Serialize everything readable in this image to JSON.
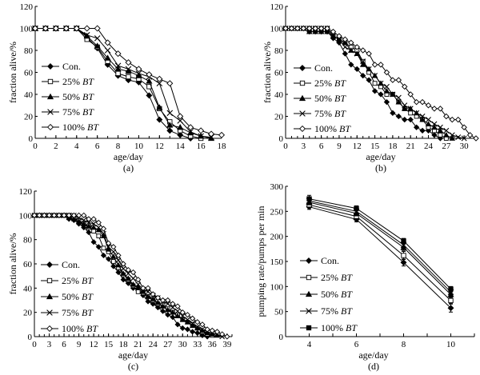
{
  "chart_data": [
    {
      "id": "a",
      "type": "line",
      "panel_label": "(a)",
      "xlabel": "age/day",
      "ylabel": "fraction alive/%",
      "xlim": [
        0,
        18
      ],
      "ylim": [
        0,
        120
      ],
      "xticks": [
        0,
        2,
        4,
        6,
        8,
        10,
        12,
        14,
        16,
        18
      ],
      "yticks": [
        0,
        20,
        40,
        60,
        80,
        100,
        120
      ],
      "legend_position": "center-left",
      "series": [
        {
          "name": "Con.",
          "marker": "diamond-filled",
          "x": [
            0,
            1,
            2,
            3,
            4,
            5,
            6,
            7,
            8,
            9,
            10,
            11,
            12,
            13,
            14,
            15
          ],
          "y": [
            100,
            100,
            100,
            100,
            100,
            92,
            82,
            67,
            57,
            53,
            51,
            39,
            17,
            7,
            3,
            0
          ]
        },
        {
          "name": "25% BT",
          "marker": "square-open",
          "x": [
            0,
            1,
            2,
            3,
            4,
            5,
            6,
            7,
            8,
            9,
            10,
            11,
            12,
            13,
            14,
            15,
            16
          ],
          "y": [
            100,
            100,
            100,
            100,
            100,
            90,
            83,
            70,
            59,
            56,
            54,
            47,
            27,
            15,
            7,
            2,
            0
          ]
        },
        {
          "name": "50% BT",
          "marker": "triangle-filled",
          "x": [
            0,
            1,
            2,
            3,
            4,
            5,
            6,
            7,
            8,
            9,
            10,
            11,
            12,
            13,
            14,
            15,
            16,
            17
          ],
          "y": [
            100,
            100,
            100,
            100,
            100,
            93,
            84,
            73,
            63,
            61,
            57,
            52,
            28,
            12,
            10,
            5,
            2,
            0
          ]
        },
        {
          "name": "75% BT",
          "marker": "x",
          "x": [
            0,
            1,
            2,
            3,
            4,
            5,
            6,
            7,
            8,
            9,
            10,
            11,
            12,
            13,
            14,
            15,
            16,
            17
          ],
          "y": [
            100,
            100,
            100,
            100,
            100,
            94,
            91,
            80,
            66,
            63,
            59,
            56,
            50,
            23,
            16,
            6,
            2,
            1
          ]
        },
        {
          "name": "100% BT",
          "marker": "diamond-open",
          "x": [
            0,
            1,
            2,
            3,
            4,
            5,
            6,
            7,
            8,
            9,
            10,
            11,
            12,
            13,
            14,
            15,
            16,
            17,
            18
          ],
          "y": [
            100,
            100,
            100,
            100,
            100,
            100,
            100,
            87,
            77,
            69,
            63,
            58,
            54,
            50,
            20,
            10,
            7,
            4,
            3
          ]
        }
      ]
    },
    {
      "id": "b",
      "type": "line",
      "panel_label": "(b)",
      "xlabel": "age/day",
      "ylabel": "fraction alive/%",
      "xlim": [
        0,
        32
      ],
      "ylim": [
        0,
        120
      ],
      "xticks": [
        0,
        3,
        6,
        9,
        12,
        15,
        18,
        21,
        24,
        27,
        30
      ],
      "yticks": [
        0,
        20,
        40,
        60,
        80,
        100,
        120
      ],
      "legend_position": "center-left",
      "series": [
        {
          "name": "Con.",
          "marker": "diamond-filled",
          "x": [
            0,
            1,
            2,
            3,
            4,
            5,
            6,
            7,
            8,
            9,
            10,
            11,
            12,
            13,
            14,
            15,
            16,
            17,
            18,
            19,
            20,
            21,
            22,
            23,
            24,
            25,
            26
          ],
          "y": [
            100,
            100,
            100,
            100,
            97,
            97,
            97,
            97,
            91,
            87,
            77,
            67,
            63,
            57,
            53,
            43,
            40,
            33,
            23,
            20,
            17,
            17,
            10,
            7,
            7,
            3,
            0
          ]
        },
        {
          "name": "25% BT",
          "marker": "square-open",
          "x": [
            0,
            1,
            2,
            3,
            4,
            5,
            6,
            7,
            8,
            9,
            10,
            11,
            12,
            13,
            14,
            15,
            16,
            17,
            18,
            19,
            20,
            21,
            22,
            23,
            24,
            25,
            26,
            27
          ],
          "y": [
            100,
            100,
            100,
            100,
            100,
            100,
            100,
            100,
            93,
            90,
            87,
            83,
            80,
            70,
            60,
            50,
            47,
            40,
            40,
            33,
            27,
            23,
            20,
            17,
            10,
            7,
            3,
            0
          ]
        },
        {
          "name": "50% BT",
          "marker": "triangle-filled",
          "x": [
            0,
            1,
            2,
            3,
            4,
            5,
            6,
            7,
            8,
            9,
            10,
            11,
            12,
            13,
            14,
            15,
            16,
            17,
            18,
            19,
            20,
            21,
            22,
            23,
            24,
            25,
            26,
            27,
            28
          ],
          "y": [
            100,
            100,
            100,
            100,
            97,
            97,
            97,
            97,
            93,
            90,
            87,
            80,
            77,
            67,
            63,
            57,
            50,
            43,
            40,
            33,
            27,
            27,
            23,
            17,
            13,
            10,
            7,
            3,
            0
          ]
        },
        {
          "name": "75% BT",
          "marker": "x",
          "x": [
            0,
            1,
            2,
            3,
            4,
            5,
            6,
            7,
            8,
            9,
            10,
            11,
            12,
            13,
            14,
            15,
            16,
            17,
            18,
            19,
            20,
            21,
            22,
            23,
            24,
            25,
            26,
            27,
            28,
            29,
            30
          ],
          "y": [
            100,
            100,
            100,
            100,
            100,
            100,
            100,
            100,
            93,
            90,
            83,
            80,
            77,
            70,
            63,
            57,
            50,
            47,
            40,
            37,
            30,
            27,
            23,
            20,
            17,
            13,
            10,
            7,
            3,
            1,
            0
          ]
        },
        {
          "name": "100% BT",
          "marker": "diamond-open",
          "x": [
            0,
            1,
            2,
            3,
            4,
            5,
            6,
            7,
            8,
            9,
            10,
            11,
            12,
            13,
            14,
            15,
            16,
            17,
            18,
            19,
            20,
            21,
            22,
            23,
            24,
            25,
            26,
            27,
            28,
            29,
            30,
            31,
            32
          ],
          "y": [
            100,
            100,
            100,
            100,
            100,
            100,
            100,
            100,
            97,
            93,
            90,
            87,
            83,
            80,
            77,
            67,
            67,
            60,
            53,
            53,
            47,
            40,
            33,
            33,
            30,
            27,
            27,
            20,
            17,
            17,
            10,
            3,
            0
          ]
        }
      ]
    },
    {
      "id": "c",
      "type": "line",
      "panel_label": "(c)",
      "xlabel": "age/day",
      "ylabel": "fraction alive/%",
      "xlim": [
        0,
        40
      ],
      "ylim": [
        0,
        120
      ],
      "xticks": [
        0,
        3,
        6,
        9,
        12,
        15,
        18,
        21,
        24,
        27,
        30,
        33,
        36,
        39
      ],
      "yticks": [
        0,
        20,
        40,
        60,
        80,
        100,
        120
      ],
      "legend_position": "center-left",
      "series": [
        {
          "name": "Con.",
          "marker": "diamond-filled",
          "x": [
            0,
            1,
            2,
            3,
            4,
            5,
            6,
            7,
            8,
            9,
            10,
            11,
            12,
            13,
            14,
            15,
            16,
            17,
            18,
            19,
            20,
            21,
            22,
            23,
            24,
            25,
            26,
            27,
            28,
            29,
            30,
            31,
            32,
            33,
            34,
            35
          ],
          "y": [
            100,
            100,
            100,
            100,
            100,
            100,
            100,
            97,
            96,
            93,
            90,
            86,
            78,
            74,
            67,
            64,
            58,
            53,
            47,
            44,
            40,
            38,
            34,
            29,
            27,
            24,
            21,
            18,
            16,
            10,
            7,
            6,
            4,
            3,
            1,
            0
          ]
        },
        {
          "name": "25% BT",
          "marker": "square-open",
          "x": [
            0,
            1,
            2,
            3,
            4,
            5,
            6,
            7,
            8,
            9,
            10,
            11,
            12,
            13,
            14,
            15,
            16,
            17,
            18,
            19,
            20,
            21,
            22,
            23,
            24,
            25,
            26,
            27,
            28,
            29,
            30,
            31,
            32,
            33,
            34,
            35,
            36
          ],
          "y": [
            100,
            100,
            100,
            100,
            100,
            100,
            100,
            100,
            98,
            96,
            93,
            90,
            87,
            83,
            73,
            70,
            62,
            57,
            51,
            47,
            42,
            37,
            36,
            33,
            30,
            27,
            26,
            23,
            20,
            18,
            14,
            12,
            10,
            7,
            4,
            2,
            1
          ]
        },
        {
          "name": "50% BT",
          "marker": "triangle-filled",
          "x": [
            0,
            1,
            2,
            3,
            4,
            5,
            6,
            7,
            8,
            9,
            10,
            11,
            12,
            13,
            14,
            15,
            16,
            17,
            18,
            19,
            20,
            21,
            22,
            23,
            24,
            25,
            26,
            27,
            28,
            29,
            30,
            31,
            32,
            33,
            34,
            35,
            36,
            37
          ],
          "y": [
            100,
            100,
            100,
            100,
            100,
            100,
            100,
            98,
            97,
            95,
            93,
            91,
            90,
            88,
            83,
            72,
            66,
            59,
            52,
            48,
            43,
            41,
            37,
            33,
            31,
            28,
            25,
            22,
            20,
            17,
            14,
            12,
            9,
            7,
            5,
            3,
            2,
            1
          ]
        },
        {
          "name": "75% BT",
          "marker": "x",
          "x": [
            0,
            1,
            2,
            3,
            4,
            5,
            6,
            7,
            8,
            9,
            10,
            11,
            12,
            13,
            14,
            15,
            16,
            17,
            18,
            19,
            20,
            21,
            22,
            23,
            24,
            25,
            26,
            27,
            28,
            29,
            30,
            31,
            32,
            33,
            34,
            35,
            36,
            37,
            38
          ],
          "y": [
            100,
            100,
            100,
            100,
            100,
            100,
            100,
            100,
            100,
            98,
            96,
            94,
            93,
            90,
            85,
            74,
            70,
            63,
            56,
            52,
            48,
            43,
            39,
            37,
            34,
            32,
            29,
            27,
            24,
            21,
            17,
            14,
            11,
            8,
            6,
            4,
            3,
            2,
            0
          ]
        },
        {
          "name": "100% BT",
          "marker": "diamond-open",
          "x": [
            0,
            1,
            2,
            3,
            4,
            5,
            6,
            7,
            8,
            9,
            10,
            11,
            12,
            13,
            14,
            15,
            16,
            17,
            18,
            19,
            20,
            21,
            22,
            23,
            24,
            25,
            26,
            27,
            28,
            29,
            30,
            31,
            32,
            33,
            34,
            35,
            36,
            37,
            38,
            39
          ],
          "y": [
            100,
            100,
            100,
            100,
            100,
            100,
            100,
            100,
            100,
            100,
            100,
            97,
            97,
            94,
            89,
            77,
            74,
            67,
            60,
            55,
            53,
            47,
            40,
            40,
            35,
            32,
            30,
            30,
            27,
            25,
            20,
            18,
            15,
            12,
            10,
            6,
            5,
            4,
            2,
            0
          ]
        }
      ]
    },
    {
      "id": "d",
      "type": "line",
      "panel_label": "(d)",
      "xlabel": "age/day",
      "ylabel": "pumping rate/pumps per min",
      "xlim": [
        3,
        11
      ],
      "ylim": [
        0,
        300
      ],
      "xticks": [
        4,
        6,
        8,
        10
      ],
      "yticks": [
        0,
        50,
        100,
        150,
        200,
        250,
        300
      ],
      "legend_position": "center-left",
      "error_bars": true,
      "series": [
        {
          "name": "Con.",
          "marker": "diamond-filled",
          "x": [
            4,
            6,
            8,
            10
          ],
          "y": [
            259,
            234,
            148,
            57
          ],
          "err": [
            5,
            5,
            7,
            8
          ]
        },
        {
          "name": "25% BT",
          "marker": "square-open",
          "x": [
            4,
            6,
            8,
            10
          ],
          "y": [
            263,
            240,
            162,
            72
          ],
          "err": [
            5,
            5,
            8,
            6
          ]
        },
        {
          "name": "50% BT",
          "marker": "triangle-filled",
          "x": [
            4,
            6,
            8,
            10
          ],
          "y": [
            268,
            246,
            178,
            84
          ],
          "err": [
            5,
            5,
            6,
            5
          ]
        },
        {
          "name": "75% BT",
          "marker": "x",
          "x": [
            4,
            6,
            8,
            10
          ],
          "y": [
            271,
            250,
            183,
            89
          ],
          "err": [
            5,
            5,
            5,
            5
          ]
        },
        {
          "name": "100% BT",
          "marker": "square-filled",
          "x": [
            4,
            6,
            8,
            10
          ],
          "y": [
            275,
            256,
            191,
            95
          ],
          "err": [
            7,
            5,
            5,
            5
          ]
        }
      ]
    }
  ]
}
